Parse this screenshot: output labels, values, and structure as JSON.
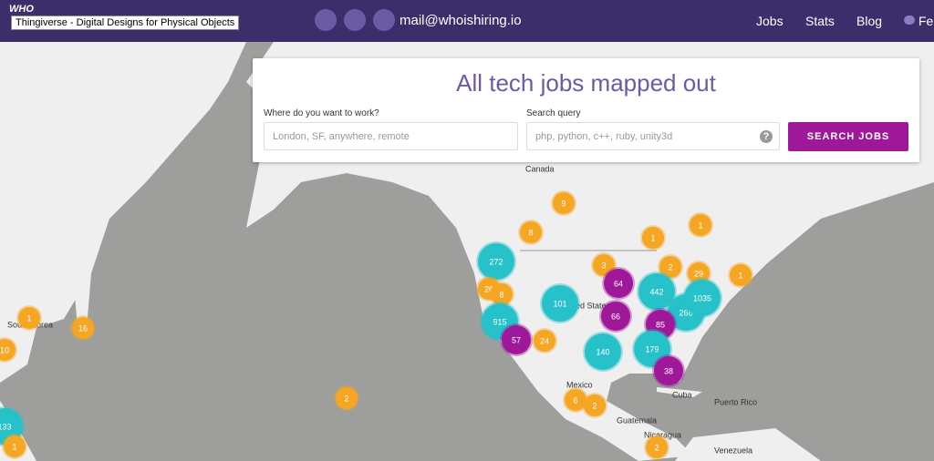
{
  "header": {
    "logo": "WHO",
    "tooltip": "Thingiverse - Digital Designs for Physical Objects",
    "email": "mail@whoishiring.io",
    "nav": [
      "Jobs",
      "Stats",
      "Blog",
      "Fe"
    ]
  },
  "search": {
    "title": "All tech jobs mapped out",
    "location_label": "Where do you want to work?",
    "location_placeholder": "London, SF, anywhere, remote",
    "query_label": "Search query",
    "query_placeholder": "php, python, c++, ruby, unity3d",
    "help": "?",
    "button": "SEARCH JOBS"
  },
  "map": {
    "labels": [
      "Canada",
      "United States",
      "South Korea",
      "Mexico",
      "Cuba",
      "Puerto Rico",
      "Guatemala",
      "Nicaragua",
      "Venezuela"
    ],
    "clusters": [
      {
        "count": 9,
        "color": "#f5a623"
      },
      {
        "count": 8,
        "color": "#f5a623"
      },
      {
        "count": 1,
        "color": "#f5a623"
      },
      {
        "count": 1,
        "color": "#f5a623"
      },
      {
        "count": 3,
        "color": "#f5a623"
      },
      {
        "count": 2,
        "color": "#f5a623"
      },
      {
        "count": 29,
        "color": "#f5a623"
      },
      {
        "count": 1,
        "color": "#f5a623"
      },
      {
        "count": 272,
        "color": "#26c1c9"
      },
      {
        "count": 26,
        "color": "#f5a623"
      },
      {
        "count": 8,
        "color": "#f5a623"
      },
      {
        "count": 101,
        "color": "#26c1c9"
      },
      {
        "count": 64,
        "color": "#a0189a"
      },
      {
        "count": 442,
        "color": "#26c1c9"
      },
      {
        "count": 266,
        "color": "#26c1c9"
      },
      {
        "count": 1035,
        "color": "#26c1c9"
      },
      {
        "count": 915,
        "color": "#26c1c9"
      },
      {
        "count": 66,
        "color": "#a0189a"
      },
      {
        "count": 85,
        "color": "#a0189a"
      },
      {
        "count": 57,
        "color": "#a0189a"
      },
      {
        "count": 24,
        "color": "#f5a623"
      },
      {
        "count": 140,
        "color": "#26c1c9"
      },
      {
        "count": 179,
        "color": "#26c1c9"
      },
      {
        "count": 38,
        "color": "#a0189a"
      },
      {
        "count": 6,
        "color": "#f5a623"
      },
      {
        "count": 2,
        "color": "#f5a623"
      },
      {
        "count": 2,
        "color": "#f5a623"
      },
      {
        "count": 1,
        "color": "#f5a623"
      },
      {
        "count": 16,
        "color": "#f5a623"
      },
      {
        "count": 10,
        "color": "#f5a623"
      },
      {
        "count": 133,
        "color": "#26c1c9"
      },
      {
        "count": 1,
        "color": "#f5a623"
      },
      {
        "count": 2,
        "color": "#f5a623"
      }
    ]
  }
}
